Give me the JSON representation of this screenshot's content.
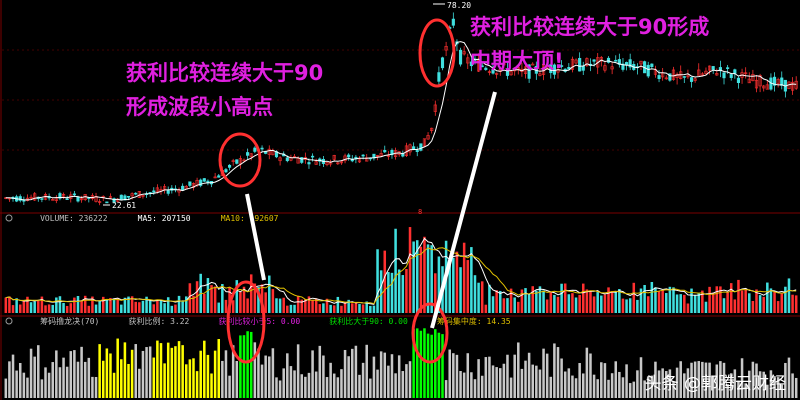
{
  "price_panel": {
    "high_label": "78.20",
    "low_label": "22.61",
    "colors": {
      "up": "#ff3030",
      "down": "#40e0e0",
      "grid": "#8b0000",
      "ma": "#ffffff"
    },
    "trend_points": [
      [
        0.0,
        23.0
      ],
      [
        0.08,
        23.4
      ],
      [
        0.13,
        22.6
      ],
      [
        0.17,
        24.2
      ],
      [
        0.22,
        26.0
      ],
      [
        0.26,
        28.5
      ],
      [
        0.29,
        33.5
      ],
      [
        0.32,
        37.5
      ],
      [
        0.35,
        35.5
      ],
      [
        0.4,
        34.5
      ],
      [
        0.45,
        35.2
      ],
      [
        0.5,
        36.8
      ],
      [
        0.53,
        39.5
      ],
      [
        0.54,
        45.0
      ],
      [
        0.545,
        54.0
      ],
      [
        0.55,
        63.0
      ],
      [
        0.56,
        70.0
      ],
      [
        0.565,
        78.0
      ],
      [
        0.57,
        72.0
      ],
      [
        0.575,
        66.0
      ],
      [
        0.59,
        64.0
      ],
      [
        0.61,
        63.0
      ],
      [
        0.65,
        61.0
      ],
      [
        0.7,
        63.0
      ],
      [
        0.76,
        64.0
      ],
      [
        0.8,
        63.0
      ],
      [
        0.86,
        59.0
      ],
      [
        0.9,
        62.0
      ],
      [
        0.95,
        58.5
      ],
      [
        1.0,
        57.0
      ]
    ],
    "y_range": [
      20,
      82
    ]
  },
  "volume_panel": {
    "legend_volume": "VOLUME: 236222",
    "legend_ma5": "MA5: 207150",
    "legend_ma10": "MA10: 192607",
    "colors": {
      "ma5": "#ffffff",
      "ma10": "#e0c000",
      "up": "#ff3030",
      "down": "#40e0e0"
    },
    "marker_label": "8"
  },
  "indicator_panel": {
    "legend_name": "筹码撸龙决(70)",
    "legend_profit_ratio": "获利比例: 3.22",
    "legend_lt_5": "获利比较小于5: 0.00",
    "legend_gt_90": "获利比大于90: 0.00",
    "legend_concentration": "筹码集中度: 14.35",
    "colors": {
      "normal": "#c8c8c8",
      "low": "#ffff00",
      "high": "#00ff00"
    }
  },
  "annotations": {
    "left_line1": "获利比较连续大于90",
    "left_line2": "形成波段小高点",
    "right_line1": "获利比较连续大于90形成",
    "right_line2": "中期大顶!",
    "circle_color": "#ff3030",
    "pointer_color": "#ffffff"
  },
  "watermark": "头条 @郭腾云财经"
}
